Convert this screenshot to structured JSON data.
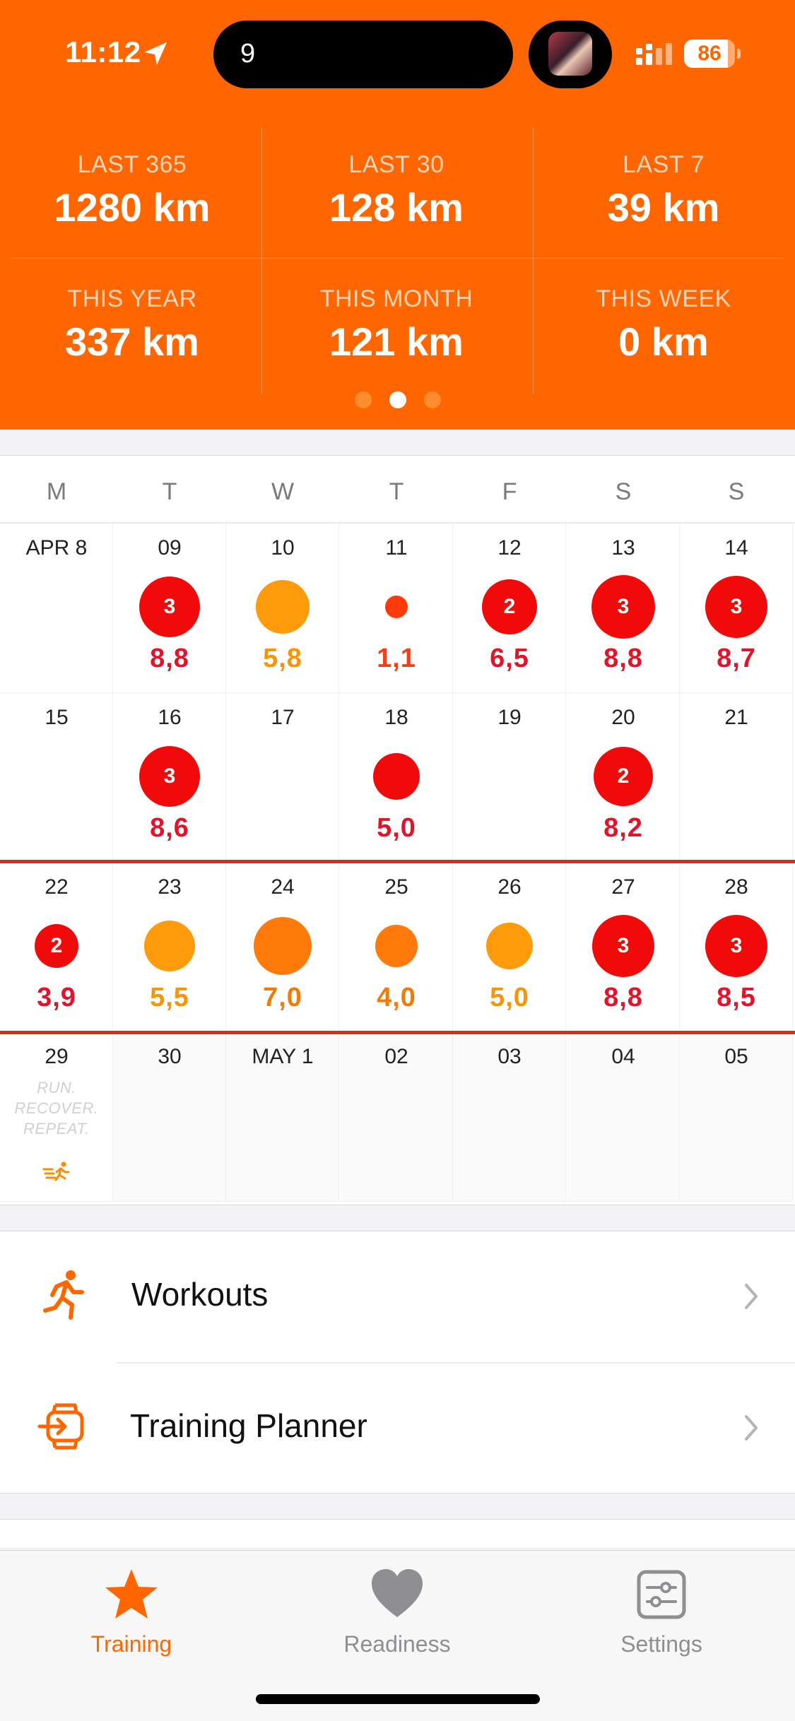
{
  "status_bar": {
    "time": "11:12",
    "island_text": "9",
    "battery_level": "86",
    "icons": [
      "location-arrow-icon",
      "signal-icon",
      "battery-icon"
    ]
  },
  "stats": [
    {
      "label": "LAST 365",
      "value": "1280 km"
    },
    {
      "label": "LAST 30",
      "value": "128 km"
    },
    {
      "label": "LAST 7",
      "value": "39 km"
    },
    {
      "label": "THIS YEAR",
      "value": "337 km"
    },
    {
      "label": "THIS MONTH",
      "value": "121 km"
    },
    {
      "label": "THIS WEEK",
      "value": "0 km"
    }
  ],
  "page_indicator": {
    "count": 3,
    "active": 1
  },
  "calendar": {
    "weekdays": [
      "M",
      "T",
      "W",
      "T",
      "F",
      "S",
      "S"
    ],
    "weeks": [
      [
        {
          "date": "APR 8"
        },
        {
          "date": "09",
          "badge": "3",
          "distance": "8,8",
          "level": "red",
          "size": 86
        },
        {
          "date": "10",
          "distance": "5,8",
          "level": "orange",
          "size": 76
        },
        {
          "date": "11",
          "distance": "1,1",
          "level": "redorange",
          "size": 32
        },
        {
          "date": "12",
          "badge": "2",
          "distance": "6,5",
          "level": "red",
          "size": 78
        },
        {
          "date": "13",
          "badge": "3",
          "distance": "8,8",
          "level": "red",
          "size": 90
        },
        {
          "date": "14",
          "badge": "3",
          "distance": "8,7",
          "level": "red",
          "size": 88
        }
      ],
      [
        {
          "date": "15"
        },
        {
          "date": "16",
          "badge": "3",
          "distance": "8,6",
          "level": "red",
          "size": 86
        },
        {
          "date": "17"
        },
        {
          "date": "18",
          "distance": "5,0",
          "level": "red",
          "size": 66
        },
        {
          "date": "19"
        },
        {
          "date": "20",
          "badge": "2",
          "distance": "8,2",
          "level": "red",
          "size": 84
        },
        {
          "date": "21"
        }
      ],
      [
        {
          "date": "22",
          "badge": "2",
          "distance": "3,9",
          "level": "red",
          "size": 62
        },
        {
          "date": "23",
          "distance": "5,5",
          "level": "orange",
          "size": 72
        },
        {
          "date": "24",
          "distance": "7,0",
          "level": "deeporange",
          "size": 82
        },
        {
          "date": "25",
          "distance": "4,0",
          "level": "deeporange",
          "size": 60
        },
        {
          "date": "26",
          "distance": "5,0",
          "level": "orange",
          "size": 66
        },
        {
          "date": "27",
          "badge": "3",
          "distance": "8,8",
          "level": "red",
          "size": 88
        },
        {
          "date": "28",
          "badge": "3",
          "distance": "8,5",
          "level": "red",
          "size": 88
        }
      ],
      [
        {
          "date": "29",
          "motto": [
            "RUN.",
            "RECOVER.",
            "REPEAT."
          ]
        },
        {
          "date": "30",
          "future": true
        },
        {
          "date": "MAY 1",
          "future": true
        },
        {
          "date": "02",
          "future": true
        },
        {
          "date": "03",
          "future": true
        },
        {
          "date": "04",
          "future": true
        },
        {
          "date": "05",
          "future": true
        }
      ]
    ],
    "colors": {
      "red": "#f00a0a",
      "redorange": "#ff3a0a",
      "deeporange": "#ff7a0a",
      "orange": "#ff9a0a"
    },
    "distance_colors": {
      "red": "#e0142a",
      "redorange": "#f0401a",
      "deeporange": "#f07a0a",
      "orange": "#f4950a"
    }
  },
  "menu": [
    {
      "label": "Workouts",
      "icon": "runner-icon"
    },
    {
      "label": "Training Planner",
      "icon": "watch-import-icon"
    }
  ],
  "tabs": [
    {
      "label": "Training",
      "icon": "star-icon",
      "active": true
    },
    {
      "label": "Readiness",
      "icon": "heart-icon",
      "active": false
    },
    {
      "label": "Settings",
      "icon": "sliders-icon",
      "active": false
    }
  ],
  "theme": {
    "accent": "#ff6600",
    "inactive": "#8e8e93"
  }
}
